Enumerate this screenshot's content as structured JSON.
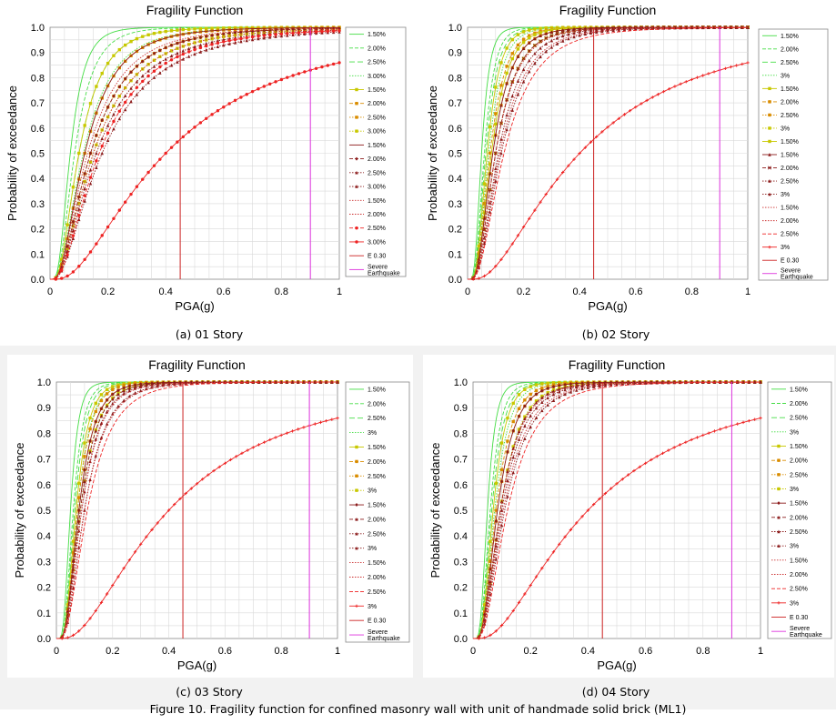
{
  "figure": {
    "caption": "Figure 10. Fragility function for confined masonry wall with unit of handmade solid brick (ML1)"
  },
  "colors": {
    "green": "#44dd44",
    "yellow": "#c8c800",
    "orange": "#d98c00",
    "darkred": "#8b1a1a",
    "crimson": "#cc3333",
    "red": "#ee2222",
    "magenta": "#dd33dd",
    "grid": "#d9d9d9",
    "axis": "#888888"
  },
  "panels": [
    {
      "id": "a",
      "caption": "(a)  01 Story",
      "chart_data": {
        "type": "line",
        "title": "Fragility Function",
        "xlabel": "PGA(g)",
        "ylabel": "Probability of exceedance",
        "xlim": [
          0,
          1
        ],
        "ylim": [
          0,
          1
        ],
        "xticks": [
          "0",
          "0.2",
          "0.4",
          "0.6",
          "0.8",
          "1"
        ],
        "yticks": [
          "0.0",
          "0.1",
          "0.2",
          "0.3",
          "0.4",
          "0.5",
          "0.6",
          "0.7",
          "0.8",
          "0.9",
          "1.0"
        ],
        "grid": true,
        "legend_position": "right",
        "series": [
          {
            "name": "1.50%",
            "color": "#44dd44",
            "dash": "solid",
            "marker": "none",
            "median": 0.07,
            "beta": 0.55
          },
          {
            "name": "2.00%",
            "color": "#44dd44",
            "dash": "dash",
            "marker": "none",
            "median": 0.085,
            "beta": 0.6
          },
          {
            "name": "2.50%",
            "color": "#44dd44",
            "dash": "longdash",
            "marker": "none",
            "median": 0.1,
            "beta": 0.65
          },
          {
            "name": "3.00%",
            "color": "#44dd44",
            "dash": "dot",
            "marker": "none",
            "median": 0.115,
            "beta": 0.7
          },
          {
            "name": "1.50%",
            "color": "#c8c800",
            "dash": "solid",
            "marker": "square",
            "median": 0.1,
            "beta": 0.65
          },
          {
            "name": "2.00%",
            "color": "#d98c00",
            "dash": "dash",
            "marker": "square",
            "median": 0.12,
            "beta": 0.7
          },
          {
            "name": "2.50%",
            "color": "#d98c00",
            "dash": "dot",
            "marker": "square",
            "median": 0.14,
            "beta": 0.75
          },
          {
            "name": "3.00%",
            "color": "#c8c800",
            "dash": "dot",
            "marker": "square",
            "median": 0.15,
            "beta": 0.78
          },
          {
            "name": "1.50%",
            "color": "#8b1a1a",
            "dash": "solid",
            "marker": "none",
            "median": 0.12,
            "beta": 0.7
          },
          {
            "name": "2.00%",
            "color": "#8b1a1a",
            "dash": "dash",
            "marker": "diamond",
            "median": 0.14,
            "beta": 0.75
          },
          {
            "name": "2.50%",
            "color": "#8b1a1a",
            "dash": "dot",
            "marker": "triangle",
            "median": 0.16,
            "beta": 0.8
          },
          {
            "name": "3.00%",
            "color": "#8b1a1a",
            "dash": "dot",
            "marker": "triangle",
            "median": 0.18,
            "beta": 0.82
          },
          {
            "name": "1.50%",
            "color": "#cc3333",
            "dash": "dot",
            "marker": "none",
            "median": 0.13,
            "beta": 0.75
          },
          {
            "name": "2.00%",
            "color": "#cc3333",
            "dash": "dot",
            "marker": "none",
            "median": 0.15,
            "beta": 0.78
          },
          {
            "name": "2.50%",
            "color": "#ee2222",
            "dash": "dash",
            "marker": "circle",
            "median": 0.17,
            "beta": 0.8
          },
          {
            "name": "3.00%",
            "color": "#ee2222",
            "dash": "solid",
            "marker": "circle",
            "median": 0.4,
            "beta": 0.85
          },
          {
            "name": "E 0.30",
            "color": "#cc2222",
            "dash": "solid",
            "marker": "none",
            "vline": 0.45
          },
          {
            "name": "Severe Earthquake",
            "color": "#dd33dd",
            "dash": "solid",
            "marker": "none",
            "vline": 0.9
          }
        ]
      }
    },
    {
      "id": "b",
      "caption": "(b)   02 Story",
      "chart_data": {
        "type": "line",
        "title": "Fragility Function",
        "xlabel": "PGA(g)",
        "ylabel": "Probability of exceedance",
        "xlim": [
          0,
          1
        ],
        "ylim": [
          0,
          1
        ],
        "xticks": [
          "0",
          "0.2",
          "0.4",
          "0.6",
          "0.8",
          "1"
        ],
        "yticks": [
          "0.0",
          "0.1",
          "0.2",
          "0.3",
          "0.4",
          "0.5",
          "0.6",
          "0.7",
          "0.8",
          "0.9",
          "1.0"
        ],
        "grid": true,
        "legend_position": "right",
        "series": [
          {
            "name": "1.50%",
            "color": "#44dd44",
            "dash": "solid",
            "marker": "none",
            "median": 0.05,
            "beta": 0.45
          },
          {
            "name": "2.00%",
            "color": "#44dd44",
            "dash": "dash",
            "marker": "none",
            "median": 0.06,
            "beta": 0.48
          },
          {
            "name": "2.50%",
            "color": "#44dd44",
            "dash": "longdash",
            "marker": "none",
            "median": 0.065,
            "beta": 0.5
          },
          {
            "name": "3%",
            "color": "#44dd44",
            "dash": "dot",
            "marker": "none",
            "median": 0.075,
            "beta": 0.52
          },
          {
            "name": "1.50%",
            "color": "#c8c800",
            "dash": "solid",
            "marker": "square",
            "median": 0.07,
            "beta": 0.5
          },
          {
            "name": "2.00%",
            "color": "#d98c00",
            "dash": "dash",
            "marker": "square",
            "median": 0.08,
            "beta": 0.55
          },
          {
            "name": "2.50%",
            "color": "#d98c00",
            "dash": "dot",
            "marker": "square",
            "median": 0.09,
            "beta": 0.58
          },
          {
            "name": "3%",
            "color": "#c8c800",
            "dash": "dot",
            "marker": "square",
            "median": 0.1,
            "beta": 0.6
          },
          {
            "name": "1.50%",
            "color": "#c8c800",
            "dash": "solid",
            "marker": "square",
            "median": 0.085,
            "beta": 0.55
          },
          {
            "name": "1.50%",
            "color": "#8b1a1a",
            "dash": "solid",
            "marker": "triangle",
            "median": 0.09,
            "beta": 0.58
          },
          {
            "name": "2.00%",
            "color": "#8b1a1a",
            "dash": "dash",
            "marker": "cross",
            "median": 0.1,
            "beta": 0.6
          },
          {
            "name": "2.50%",
            "color": "#8b1a1a",
            "dash": "dot",
            "marker": "triangle",
            "median": 0.11,
            "beta": 0.62
          },
          {
            "name": "3%",
            "color": "#8b1a1a",
            "dash": "dot",
            "marker": "triangle",
            "median": 0.12,
            "beta": 0.65
          },
          {
            "name": "1.50%",
            "color": "#cc3333",
            "dash": "dot",
            "marker": "none",
            "median": 0.1,
            "beta": 0.62
          },
          {
            "name": "2.00%",
            "color": "#cc3333",
            "dash": "dot",
            "marker": "none",
            "median": 0.115,
            "beta": 0.65
          },
          {
            "name": "2.50%",
            "color": "#ee2222",
            "dash": "dash",
            "marker": "none",
            "median": 0.13,
            "beta": 0.68
          },
          {
            "name": "3%",
            "color": "#ee2222",
            "dash": "solid",
            "marker": "plus",
            "median": 0.4,
            "beta": 0.85
          },
          {
            "name": "E 0.30",
            "color": "#cc2222",
            "dash": "solid",
            "marker": "none",
            "vline": 0.45
          },
          {
            "name": "Severe Earthquake",
            "color": "#dd33dd",
            "dash": "solid",
            "marker": "none",
            "vline": 0.9
          }
        ]
      }
    },
    {
      "id": "c",
      "caption": "(c)   03 Story",
      "chart_data": {
        "type": "line",
        "title": "Fragility Function",
        "xlabel": "PGA(g)",
        "ylabel": "Probability of exceedance",
        "xlim": [
          0,
          1
        ],
        "ylim": [
          0,
          1
        ],
        "xticks": [
          "0",
          "0.2",
          "0.4",
          "0.6",
          "0.8",
          "1"
        ],
        "yticks": [
          "0.0",
          "0.1",
          "0.2",
          "0.3",
          "0.4",
          "0.5",
          "0.6",
          "0.7",
          "0.8",
          "0.9",
          "1.0"
        ],
        "grid": true,
        "legend_position": "right",
        "series": [
          {
            "name": "1.50%",
            "color": "#44dd44",
            "dash": "solid",
            "marker": "none",
            "median": 0.05,
            "beta": 0.45
          },
          {
            "name": "2.00%",
            "color": "#44dd44",
            "dash": "dash",
            "marker": "none",
            "median": 0.06,
            "beta": 0.47
          },
          {
            "name": "2.50%",
            "color": "#44dd44",
            "dash": "longdash",
            "marker": "none",
            "median": 0.065,
            "beta": 0.48
          },
          {
            "name": "3%",
            "color": "#44dd44",
            "dash": "dot",
            "marker": "none",
            "median": 0.075,
            "beta": 0.5
          },
          {
            "name": "1.50%",
            "color": "#c8c800",
            "dash": "solid",
            "marker": "square",
            "median": 0.07,
            "beta": 0.5
          },
          {
            "name": "2.00%",
            "color": "#d98c00",
            "dash": "dash",
            "marker": "square",
            "median": 0.075,
            "beta": 0.52
          },
          {
            "name": "2.50%",
            "color": "#d98c00",
            "dash": "dot",
            "marker": "square",
            "median": 0.08,
            "beta": 0.55
          },
          {
            "name": "3%",
            "color": "#c8c800",
            "dash": "dot",
            "marker": "square",
            "median": 0.085,
            "beta": 0.56
          },
          {
            "name": "1.50%",
            "color": "#8b1a1a",
            "dash": "solid",
            "marker": "diamond",
            "median": 0.08,
            "beta": 0.55
          },
          {
            "name": "2.00%",
            "color": "#8b1a1a",
            "dash": "dash",
            "marker": "triangle",
            "median": 0.085,
            "beta": 0.57
          },
          {
            "name": "2.50%",
            "color": "#8b1a1a",
            "dash": "dot",
            "marker": "triangle",
            "median": 0.09,
            "beta": 0.58
          },
          {
            "name": "3%",
            "color": "#8b1a1a",
            "dash": "dot",
            "marker": "triangle",
            "median": 0.1,
            "beta": 0.6
          },
          {
            "name": "1.50%",
            "color": "#cc3333",
            "dash": "dot",
            "marker": "none",
            "median": 0.09,
            "beta": 0.6
          },
          {
            "name": "2.00%",
            "color": "#cc3333",
            "dash": "dot",
            "marker": "none",
            "median": 0.1,
            "beta": 0.62
          },
          {
            "name": "2.50%",
            "color": "#ee2222",
            "dash": "dash",
            "marker": "none",
            "median": 0.11,
            "beta": 0.64
          },
          {
            "name": "3%",
            "color": "#ee2222",
            "dash": "solid",
            "marker": "plus",
            "median": 0.4,
            "beta": 0.85
          },
          {
            "name": "E 0.30",
            "color": "#cc2222",
            "dash": "solid",
            "marker": "none",
            "vline": 0.45
          },
          {
            "name": "Severe Earthquake",
            "color": "#dd33dd",
            "dash": "solid",
            "marker": "none",
            "vline": 0.9
          }
        ]
      }
    },
    {
      "id": "d",
      "caption": "(d)   04 Story",
      "chart_data": {
        "type": "line",
        "title": "Fragility Function",
        "xlabel": "PGA(g)",
        "ylabel": "Probability of exceedance",
        "xlim": [
          0,
          1
        ],
        "ylim": [
          0,
          1
        ],
        "xticks": [
          "0",
          "0.2",
          "0.4",
          "0.6",
          "0.8",
          "1"
        ],
        "yticks": [
          "0.0",
          "0.1",
          "0.2",
          "0.3",
          "0.4",
          "0.5",
          "0.6",
          "0.7",
          "0.8",
          "0.9",
          "1.0"
        ],
        "grid": true,
        "legend_position": "right",
        "series": [
          {
            "name": "1.50%",
            "color": "#44dd44",
            "dash": "solid",
            "marker": "none",
            "median": 0.05,
            "beta": 0.45
          },
          {
            "name": "2.00%",
            "color": "#44dd44",
            "dash": "dash",
            "marker": "none",
            "median": 0.06,
            "beta": 0.48
          },
          {
            "name": "2.50%",
            "color": "#44dd44",
            "dash": "longdash",
            "marker": "none",
            "median": 0.065,
            "beta": 0.5
          },
          {
            "name": "3%",
            "color": "#44dd44",
            "dash": "dot",
            "marker": "none",
            "median": 0.075,
            "beta": 0.52
          },
          {
            "name": "1.50%",
            "color": "#c8c800",
            "dash": "solid",
            "marker": "square",
            "median": 0.07,
            "beta": 0.5
          },
          {
            "name": "2.00%",
            "color": "#d98c00",
            "dash": "dash",
            "marker": "square",
            "median": 0.08,
            "beta": 0.55
          },
          {
            "name": "2.50%",
            "color": "#d98c00",
            "dash": "dot",
            "marker": "square",
            "median": 0.085,
            "beta": 0.57
          },
          {
            "name": "3%",
            "color": "#c8c800",
            "dash": "dot",
            "marker": "square",
            "median": 0.095,
            "beta": 0.58
          },
          {
            "name": "1.50%",
            "color": "#8b1a1a",
            "dash": "solid",
            "marker": "diamond",
            "median": 0.085,
            "beta": 0.57
          },
          {
            "name": "2.00%",
            "color": "#8b1a1a",
            "dash": "dash",
            "marker": "triangle",
            "median": 0.095,
            "beta": 0.6
          },
          {
            "name": "2.50%",
            "color": "#8b1a1a",
            "dash": "dot",
            "marker": "triangle",
            "median": 0.1,
            "beta": 0.62
          },
          {
            "name": "3%",
            "color": "#8b1a1a",
            "dash": "dot",
            "marker": "triangle",
            "median": 0.11,
            "beta": 0.64
          },
          {
            "name": "1.50%",
            "color": "#cc3333",
            "dash": "dot",
            "marker": "none",
            "median": 0.095,
            "beta": 0.62
          },
          {
            "name": "2.00%",
            "color": "#cc3333",
            "dash": "dot",
            "marker": "none",
            "median": 0.105,
            "beta": 0.64
          },
          {
            "name": "2.50%",
            "color": "#ee2222",
            "dash": "dash",
            "marker": "none",
            "median": 0.12,
            "beta": 0.66
          },
          {
            "name": "3%",
            "color": "#ee2222",
            "dash": "solid",
            "marker": "plus",
            "median": 0.4,
            "beta": 0.85
          },
          {
            "name": "E 0.30",
            "color": "#cc2222",
            "dash": "solid",
            "marker": "none",
            "vline": 0.45
          },
          {
            "name": "Severe Earthquake",
            "color": "#dd33dd",
            "dash": "solid",
            "marker": "none",
            "vline": 0.9
          }
        ]
      }
    }
  ]
}
